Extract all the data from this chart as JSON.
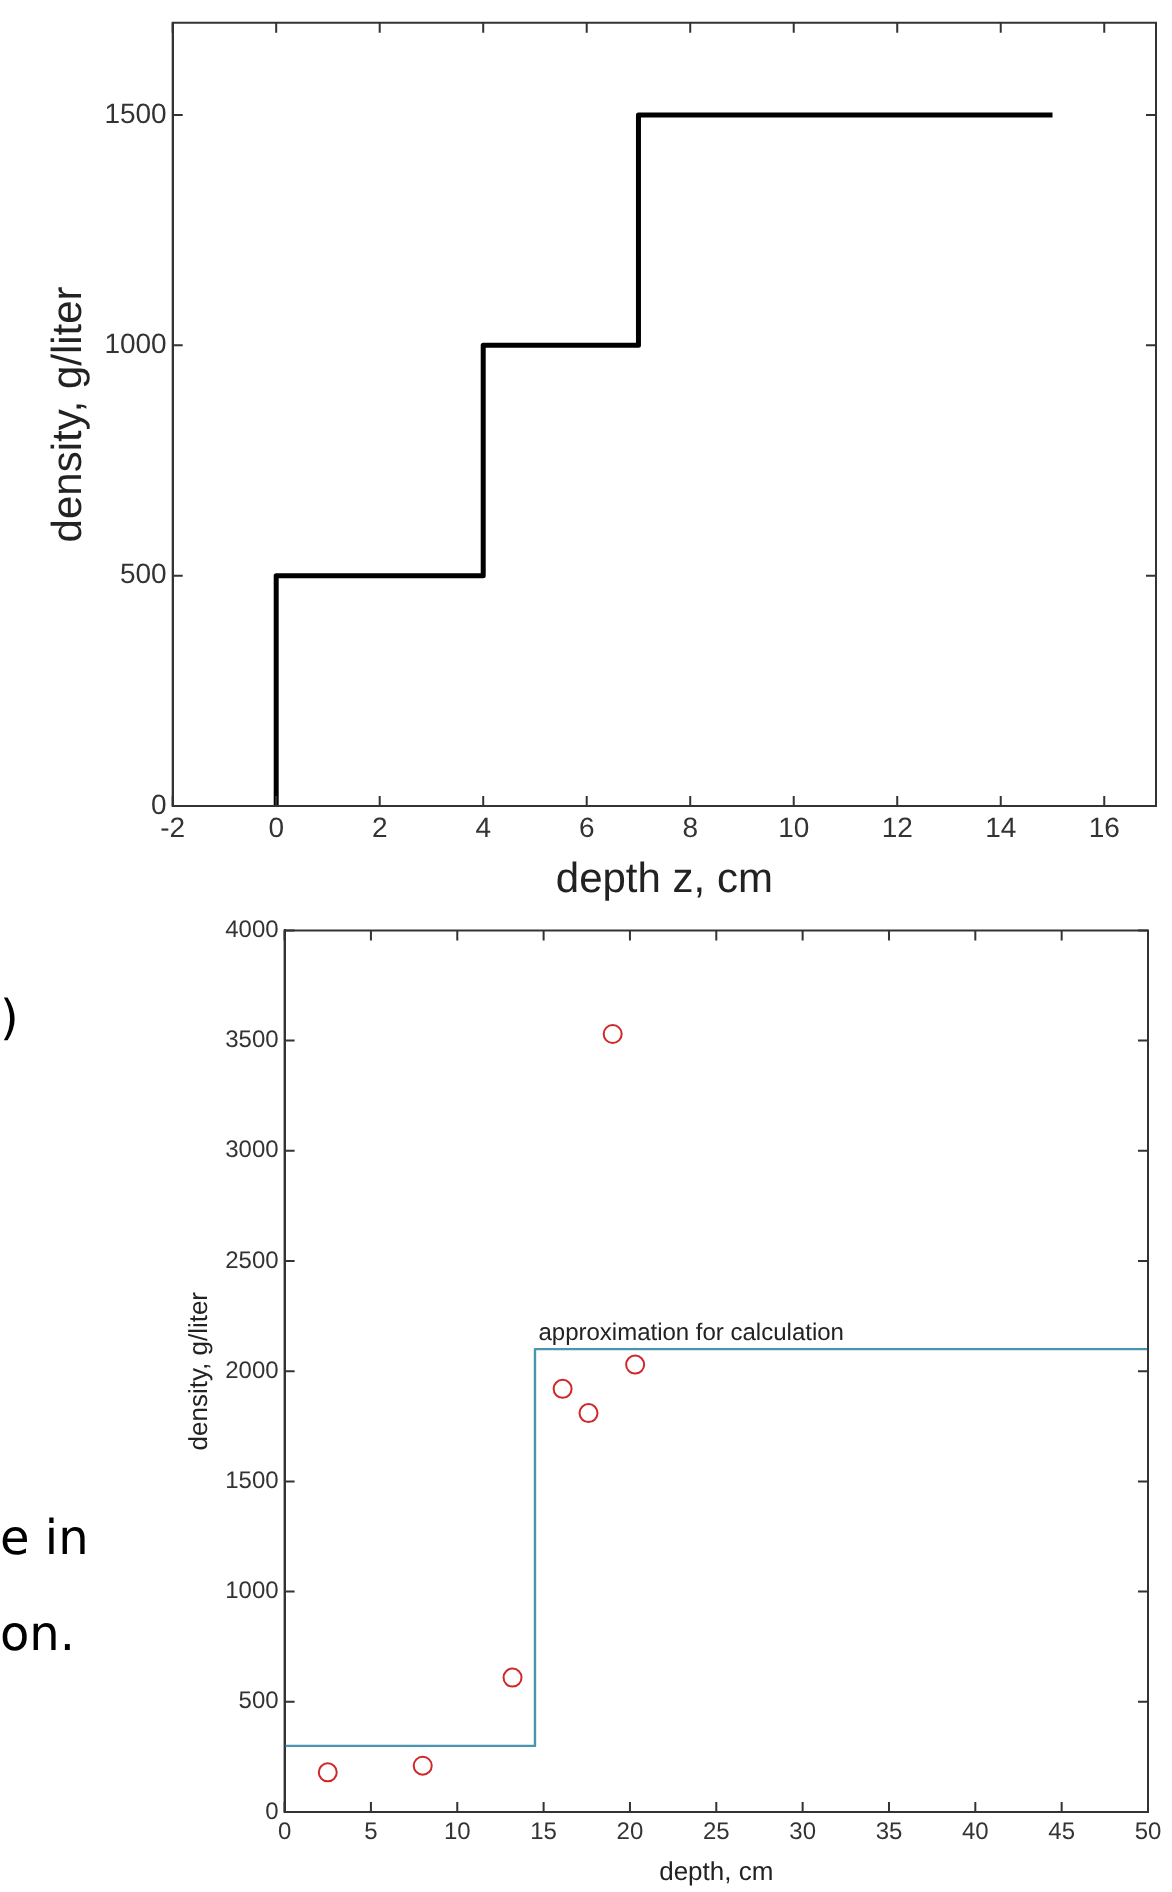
{
  "chart_data": [
    {
      "type": "line",
      "xlabel": "depth z, cm",
      "ylabel": "density, g/liter",
      "xlim": [
        -2,
        17
      ],
      "ylim": [
        0,
        1700
      ],
      "xticks": [
        -2,
        0,
        2,
        4,
        6,
        8,
        10,
        12,
        14,
        16
      ],
      "yticks": [
        0,
        500,
        1000,
        1500
      ],
      "grid": false,
      "legend": false,
      "series": [
        {
          "color": "#000000",
          "x": [
            0,
            0,
            4,
            4,
            7,
            7,
            15
          ],
          "values": [
            0,
            500,
            500,
            1000,
            1000,
            1500,
            1500
          ]
        }
      ]
    },
    {
      "type": "scatter",
      "xlabel": "depth, cm",
      "ylabel": "density, g/liter",
      "xlim": [
        0,
        50
      ],
      "ylim": [
        0,
        4000
      ],
      "xticks": [
        0,
        5,
        10,
        15,
        20,
        25,
        30,
        35,
        40,
        45,
        50
      ],
      "yticks": [
        0,
        500,
        1000,
        1500,
        2000,
        2500,
        3000,
        3500,
        4000
      ],
      "grid": false,
      "legend": false,
      "annotations": [
        ")",
        "e in",
        "on.",
        {
          "text": "approximation for calculation",
          "x": 14.7,
          "y": 2100
        }
      ],
      "series": [
        {
          "marker": "circle",
          "color": "#d02828",
          "x": [
            2.5,
            8.0,
            13.2,
            16.1,
            17.6,
            19.0,
            20.3
          ],
          "values": [
            180,
            210,
            610,
            1920,
            1810,
            3530,
            2030
          ]
        },
        {
          "type": "line",
          "color": "#4a96b0",
          "x": [
            0,
            14.5,
            14.5,
            50
          ],
          "values": [
            300,
            300,
            2100,
            2100
          ]
        }
      ]
    }
  ]
}
